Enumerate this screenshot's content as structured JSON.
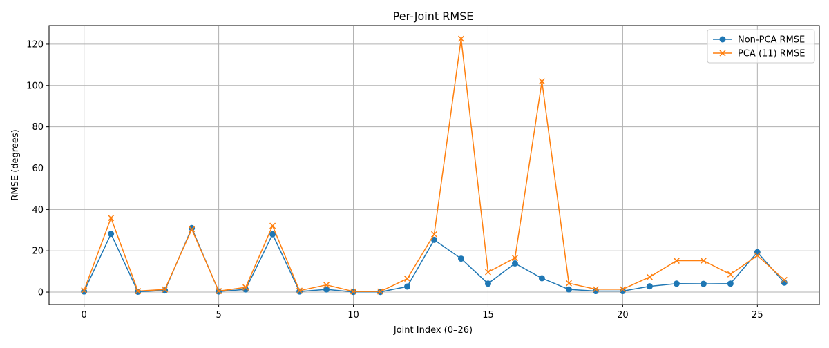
{
  "chart_data": {
    "type": "line",
    "title": "Per-Joint RMSE",
    "xlabel": "Joint Index (0–26)",
    "ylabel": "RMSE (degrees)",
    "xlim": [
      -1.3,
      27.3
    ],
    "ylim": [
      -6,
      129
    ],
    "xticks": [
      0,
      5,
      10,
      15,
      20,
      25
    ],
    "yticks": [
      0,
      20,
      40,
      60,
      80,
      100,
      120
    ],
    "grid": true,
    "legend_position": "top-right",
    "x": [
      0,
      1,
      2,
      3,
      4,
      5,
      6,
      7,
      8,
      9,
      10,
      11,
      12,
      13,
      14,
      15,
      16,
      17,
      18,
      19,
      20,
      21,
      22,
      23,
      24,
      25,
      26
    ],
    "series": [
      {
        "name": "Non-PCA RMSE",
        "color": "#1f77b4",
        "marker": "circle",
        "values": [
          0.3,
          28.2,
          0.2,
          0.8,
          31.0,
          0.3,
          1.3,
          28.0,
          0.3,
          1.3,
          0.1,
          0.1,
          2.7,
          25.3,
          16.2,
          4.1,
          13.9,
          6.7,
          1.3,
          0.5,
          0.5,
          2.8,
          4.1,
          4.0,
          4.1,
          19.3,
          4.6
        ]
      },
      {
        "name": "PCA (11) RMSE",
        "color": "#ff7f0e",
        "marker": "x",
        "values": [
          0.8,
          35.9,
          0.5,
          1.3,
          30.4,
          0.5,
          2.3,
          32.1,
          0.7,
          3.5,
          0.3,
          0.3,
          6.5,
          28.0,
          122.6,
          9.7,
          16.5,
          102.0,
          4.3,
          1.4,
          1.4,
          7.3,
          15.2,
          15.2,
          8.6,
          17.7,
          5.9
        ]
      }
    ]
  }
}
